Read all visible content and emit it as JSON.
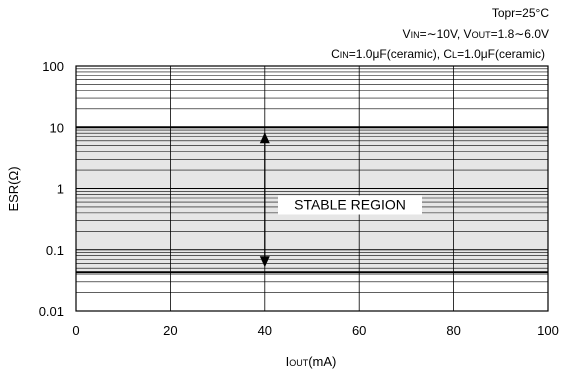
{
  "chart_data": {
    "type": "area",
    "conditions": {
      "line1": "Topr=25°C",
      "line2": {
        "vin_sym": "V",
        "vin_sub": "IN",
        "vin_val": "=∼10V, ",
        "vout_sym": "V",
        "vout_sub": "OUT",
        "vout_val": "=1.8∼6.0V"
      },
      "line3": {
        "cin_sym": "C",
        "cin_sub": "IN",
        "cin_val": "=1.0μF(ceramic), ",
        "cl_sym": "C",
        "cl_sub": "L",
        "cl_val": "=1.0μF(ceramic)"
      }
    },
    "xlabel": {
      "sym": "I",
      "sub": "OUT",
      "unit": "(mA)"
    },
    "ylabel": "ESR(Ω)",
    "x_ticks": [
      {
        "value": 0,
        "label": "0"
      },
      {
        "value": 20,
        "label": "20"
      },
      {
        "value": 40,
        "label": "40"
      },
      {
        "value": 60,
        "label": "60"
      },
      {
        "value": 80,
        "label": "80"
      },
      {
        "value": 100,
        "label": "100"
      }
    ],
    "y_ticks": [
      {
        "value": 0.01,
        "label": "0.01"
      },
      {
        "value": 0.1,
        "label": "0.1"
      },
      {
        "value": 1,
        "label": "1"
      },
      {
        "value": 10,
        "label": "10"
      },
      {
        "value": 100,
        "label": "100"
      }
    ],
    "xlim": [
      0,
      100
    ],
    "ylim": [
      0.01,
      100
    ],
    "y_scale": "log",
    "grid": true,
    "stable_region": {
      "label": "STABLE REGION",
      "esr_min": 0.043,
      "esr_max": 10,
      "iout_range": [
        0,
        100
      ],
      "arrow_x": 40
    },
    "colors": {
      "region_fill": "#e6e6e6",
      "grid": "#000000"
    }
  }
}
